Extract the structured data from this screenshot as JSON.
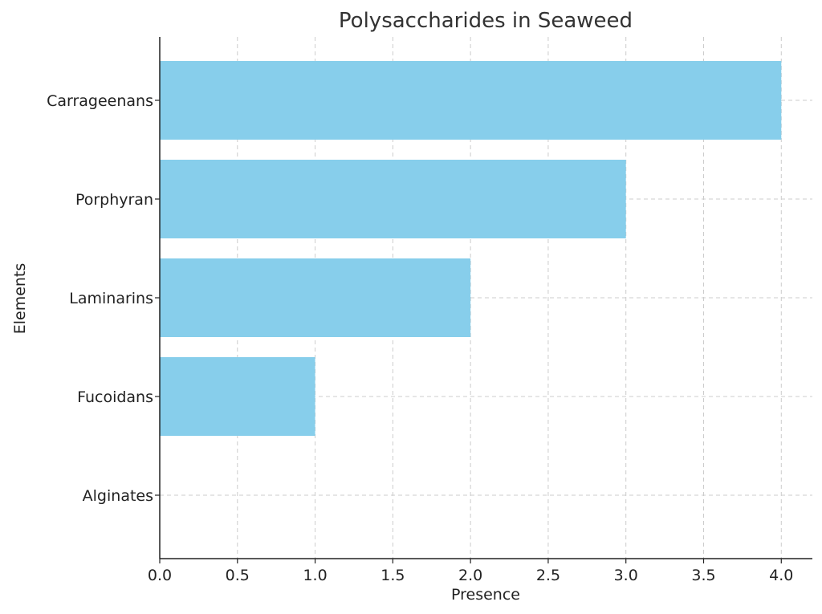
{
  "chart_data": {
    "type": "bar",
    "orientation": "horizontal",
    "title": "Polysaccharides in Seaweed",
    "xlabel": "Presence",
    "ylabel": "Elements",
    "categories": [
      "Alginates",
      "Fucoidans",
      "Laminarins",
      "Porphyran",
      "Carrageenans"
    ],
    "values": [
      0,
      1,
      2,
      3,
      4
    ],
    "xlim": [
      0,
      4.2
    ],
    "xticks": [
      "0.0",
      "0.5",
      "1.0",
      "1.5",
      "2.0",
      "2.5",
      "3.0",
      "3.5",
      "4.0"
    ],
    "grid": true,
    "bar_color": "#87ceeb"
  }
}
